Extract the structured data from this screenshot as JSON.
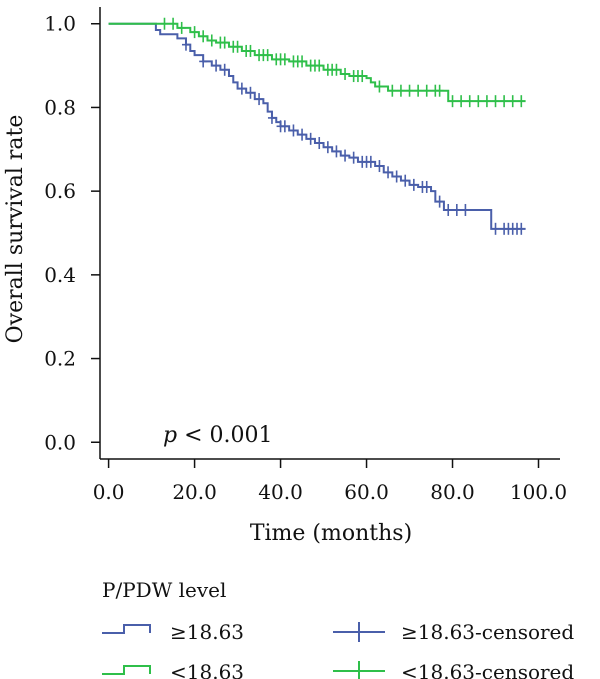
{
  "chart_data": {
    "type": "line",
    "subtype": "kaplan-meier",
    "xlabel": "Time (months)",
    "ylabel": "Overall survival rate",
    "xlim": [
      -2,
      105
    ],
    "ylim": [
      -0.04,
      1.04
    ],
    "xticks": [
      0,
      20,
      40,
      60,
      80,
      100
    ],
    "xtick_labels": [
      "0.0",
      "20.0",
      "40.0",
      "60.0",
      "80.0",
      "100.0"
    ],
    "yticks": [
      0,
      0.2,
      0.4,
      0.6,
      0.8,
      1.0
    ],
    "ytick_labels": [
      "0.0",
      "0.2",
      "0.4",
      "0.6",
      "0.8",
      "1.0"
    ],
    "annotation": {
      "p": "p",
      "rest": " < 0.001"
    },
    "legend": {
      "title": "P/PDW level",
      "placement": "bottom",
      "items": [
        "≥18.63",
        "<18.63",
        "≥18.63-censored",
        "<18.63-censored"
      ]
    },
    "series": [
      {
        "name": "≥18.63",
        "color": "#4a5faa",
        "steps": [
          [
            0,
            1.0
          ],
          [
            10,
            1.0
          ],
          [
            11,
            0.985
          ],
          [
            12,
            0.975
          ],
          [
            16,
            0.965
          ],
          [
            18,
            0.95
          ],
          [
            19,
            0.935
          ],
          [
            20,
            0.925
          ],
          [
            22,
            0.91
          ],
          [
            24,
            0.9
          ],
          [
            26,
            0.89
          ],
          [
            28,
            0.875
          ],
          [
            29,
            0.86
          ],
          [
            30,
            0.845
          ],
          [
            32,
            0.835
          ],
          [
            34,
            0.82
          ],
          [
            36,
            0.81
          ],
          [
            37,
            0.79
          ],
          [
            38,
            0.775
          ],
          [
            39,
            0.765
          ],
          [
            40,
            0.755
          ],
          [
            42,
            0.745
          ],
          [
            44,
            0.735
          ],
          [
            46,
            0.725
          ],
          [
            48,
            0.715
          ],
          [
            50,
            0.705
          ],
          [
            52,
            0.695
          ],
          [
            54,
            0.685
          ],
          [
            56,
            0.68
          ],
          [
            58,
            0.67
          ],
          [
            62,
            0.66
          ],
          [
            64,
            0.645
          ],
          [
            66,
            0.635
          ],
          [
            68,
            0.625
          ],
          [
            70,
            0.615
          ],
          [
            72,
            0.61
          ],
          [
            75,
            0.6
          ],
          [
            76,
            0.575
          ],
          [
            78,
            0.555
          ],
          [
            88,
            0.555
          ],
          [
            89,
            0.51
          ],
          [
            97,
            0.51
          ]
        ],
        "censored": [
          [
            18,
            0.95
          ],
          [
            22,
            0.91
          ],
          [
            25,
            0.9
          ],
          [
            27,
            0.89
          ],
          [
            31,
            0.845
          ],
          [
            33,
            0.835
          ],
          [
            35,
            0.82
          ],
          [
            38,
            0.775
          ],
          [
            40,
            0.755
          ],
          [
            41,
            0.755
          ],
          [
            43,
            0.745
          ],
          [
            45,
            0.735
          ],
          [
            47,
            0.725
          ],
          [
            49,
            0.715
          ],
          [
            51,
            0.705
          ],
          [
            53,
            0.695
          ],
          [
            55,
            0.685
          ],
          [
            57,
            0.68
          ],
          [
            59,
            0.67
          ],
          [
            60,
            0.67
          ],
          [
            61,
            0.67
          ],
          [
            63,
            0.66
          ],
          [
            65,
            0.645
          ],
          [
            67,
            0.635
          ],
          [
            69,
            0.625
          ],
          [
            71,
            0.615
          ],
          [
            73,
            0.61
          ],
          [
            74,
            0.61
          ],
          [
            77,
            0.575
          ],
          [
            79,
            0.555
          ],
          [
            81,
            0.555
          ],
          [
            83,
            0.555
          ],
          [
            90,
            0.51
          ],
          [
            92,
            0.51
          ],
          [
            93,
            0.51
          ],
          [
            94,
            0.51
          ],
          [
            95,
            0.51
          ],
          [
            96,
            0.51
          ]
        ]
      },
      {
        "name": "<18.63",
        "color": "#2fbf4a",
        "steps": [
          [
            0,
            1.0
          ],
          [
            12,
            1.0
          ],
          [
            16,
            0.99
          ],
          [
            19,
            0.98
          ],
          [
            21,
            0.97
          ],
          [
            23,
            0.96
          ],
          [
            25,
            0.955
          ],
          [
            28,
            0.945
          ],
          [
            31,
            0.935
          ],
          [
            34,
            0.925
          ],
          [
            38,
            0.915
          ],
          [
            42,
            0.91
          ],
          [
            46,
            0.9
          ],
          [
            50,
            0.89
          ],
          [
            54,
            0.88
          ],
          [
            56,
            0.875
          ],
          [
            60,
            0.87
          ],
          [
            61,
            0.86
          ],
          [
            62,
            0.85
          ],
          [
            65,
            0.84
          ],
          [
            78,
            0.84
          ],
          [
            79,
            0.815
          ],
          [
            97,
            0.815
          ]
        ],
        "censored": [
          [
            13,
            1.0
          ],
          [
            15,
            1.0
          ],
          [
            17,
            0.99
          ],
          [
            20,
            0.98
          ],
          [
            22,
            0.97
          ],
          [
            24,
            0.96
          ],
          [
            26,
            0.955
          ],
          [
            27,
            0.955
          ],
          [
            29,
            0.945
          ],
          [
            30,
            0.945
          ],
          [
            32,
            0.935
          ],
          [
            33,
            0.935
          ],
          [
            35,
            0.925
          ],
          [
            36,
            0.925
          ],
          [
            37,
            0.925
          ],
          [
            39,
            0.915
          ],
          [
            40,
            0.915
          ],
          [
            41,
            0.915
          ],
          [
            43,
            0.91
          ],
          [
            44,
            0.91
          ],
          [
            45,
            0.91
          ],
          [
            47,
            0.9
          ],
          [
            48,
            0.9
          ],
          [
            49,
            0.9
          ],
          [
            51,
            0.89
          ],
          [
            52,
            0.89
          ],
          [
            53,
            0.89
          ],
          [
            55,
            0.88
          ],
          [
            57,
            0.875
          ],
          [
            58,
            0.875
          ],
          [
            59,
            0.875
          ],
          [
            63,
            0.85
          ],
          [
            66,
            0.84
          ],
          [
            68,
            0.84
          ],
          [
            70,
            0.84
          ],
          [
            72,
            0.84
          ],
          [
            74,
            0.84
          ],
          [
            76,
            0.84
          ],
          [
            77,
            0.84
          ],
          [
            80,
            0.815
          ],
          [
            82,
            0.815
          ],
          [
            84,
            0.815
          ],
          [
            86,
            0.815
          ],
          [
            88,
            0.815
          ],
          [
            90,
            0.815
          ],
          [
            92,
            0.815
          ],
          [
            94,
            0.815
          ],
          [
            96,
            0.815
          ]
        ]
      }
    ]
  }
}
